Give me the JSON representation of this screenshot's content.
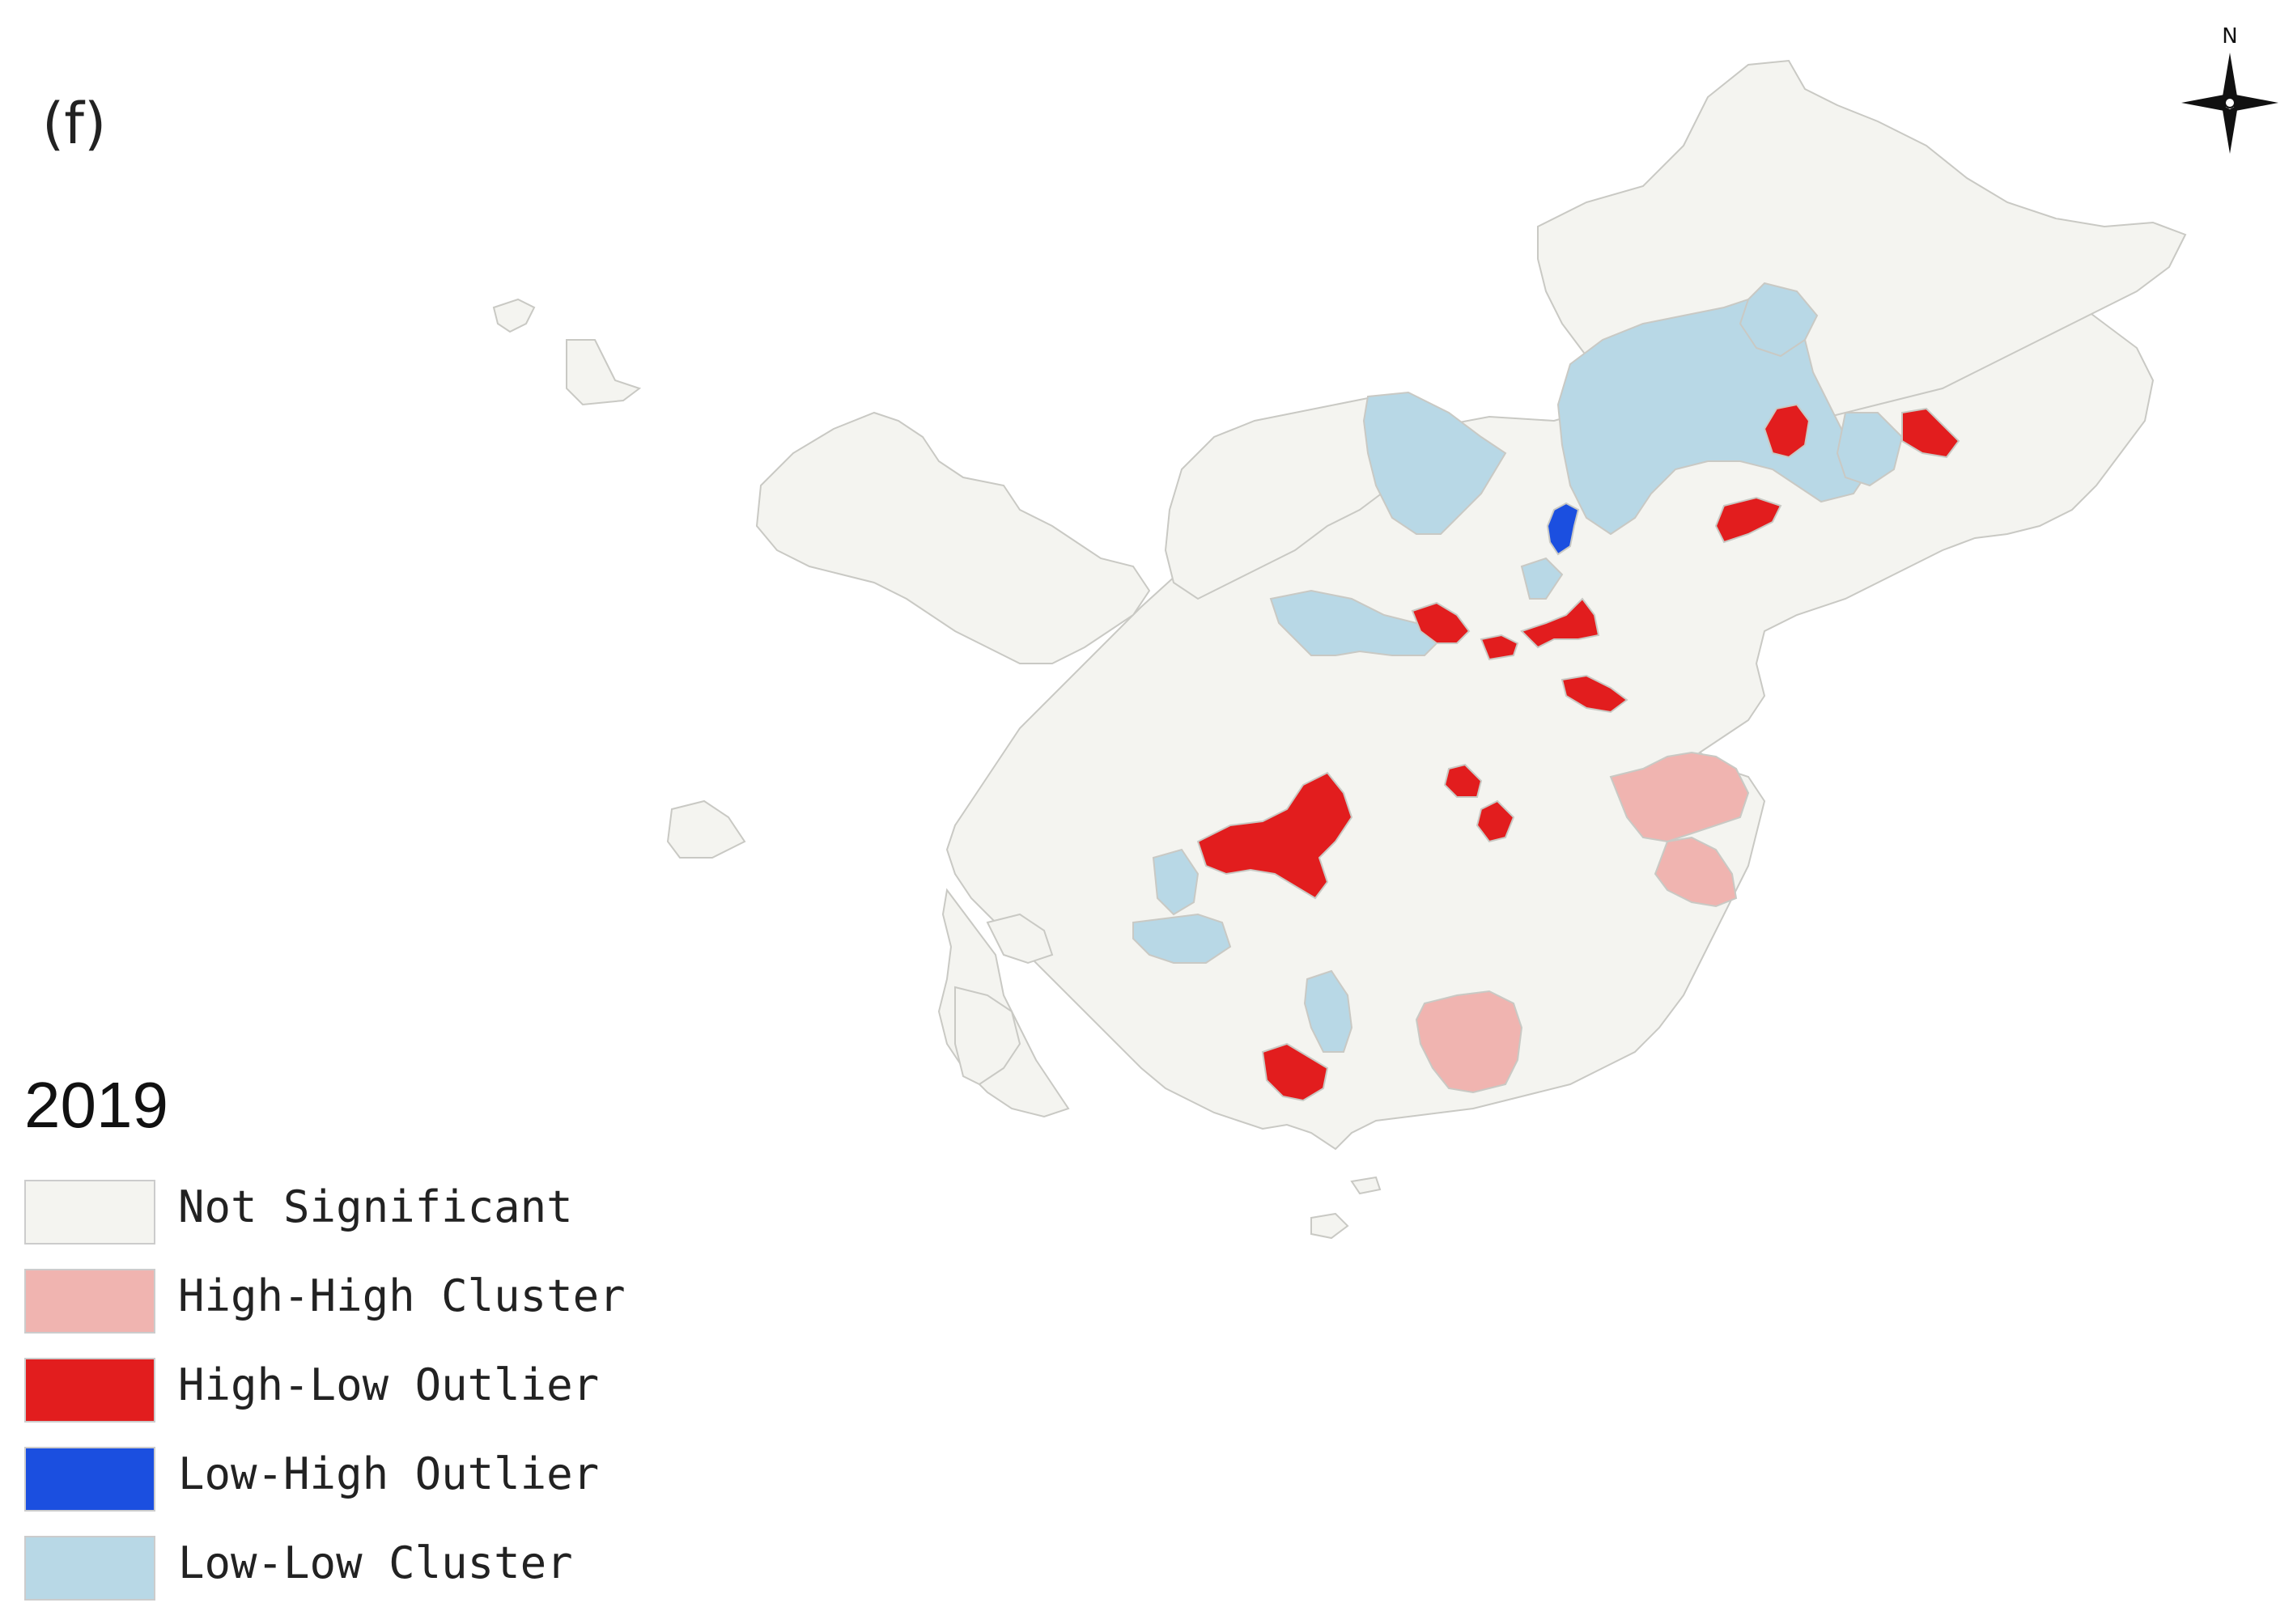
{
  "panel_label": "(f)",
  "year": "2019",
  "compass": {
    "label": "N"
  },
  "legend": [
    {
      "key": "not_significant",
      "label": "Not Significant",
      "color": "#f4f4f0"
    },
    {
      "key": "high_high",
      "label": "High-High Cluster",
      "color": "#f0b4b0"
    },
    {
      "key": "high_low",
      "label": "High-Low Outlier",
      "color": "#e21d1e"
    },
    {
      "key": "low_high",
      "label": "Low-High Outlier",
      "color": "#1b4fe0"
    },
    {
      "key": "low_low",
      "label": "Low-Low Cluster",
      "color": "#b8d8e6"
    }
  ],
  "colors": {
    "boundary": "#c9c9c4",
    "background": "#ffffff"
  }
}
